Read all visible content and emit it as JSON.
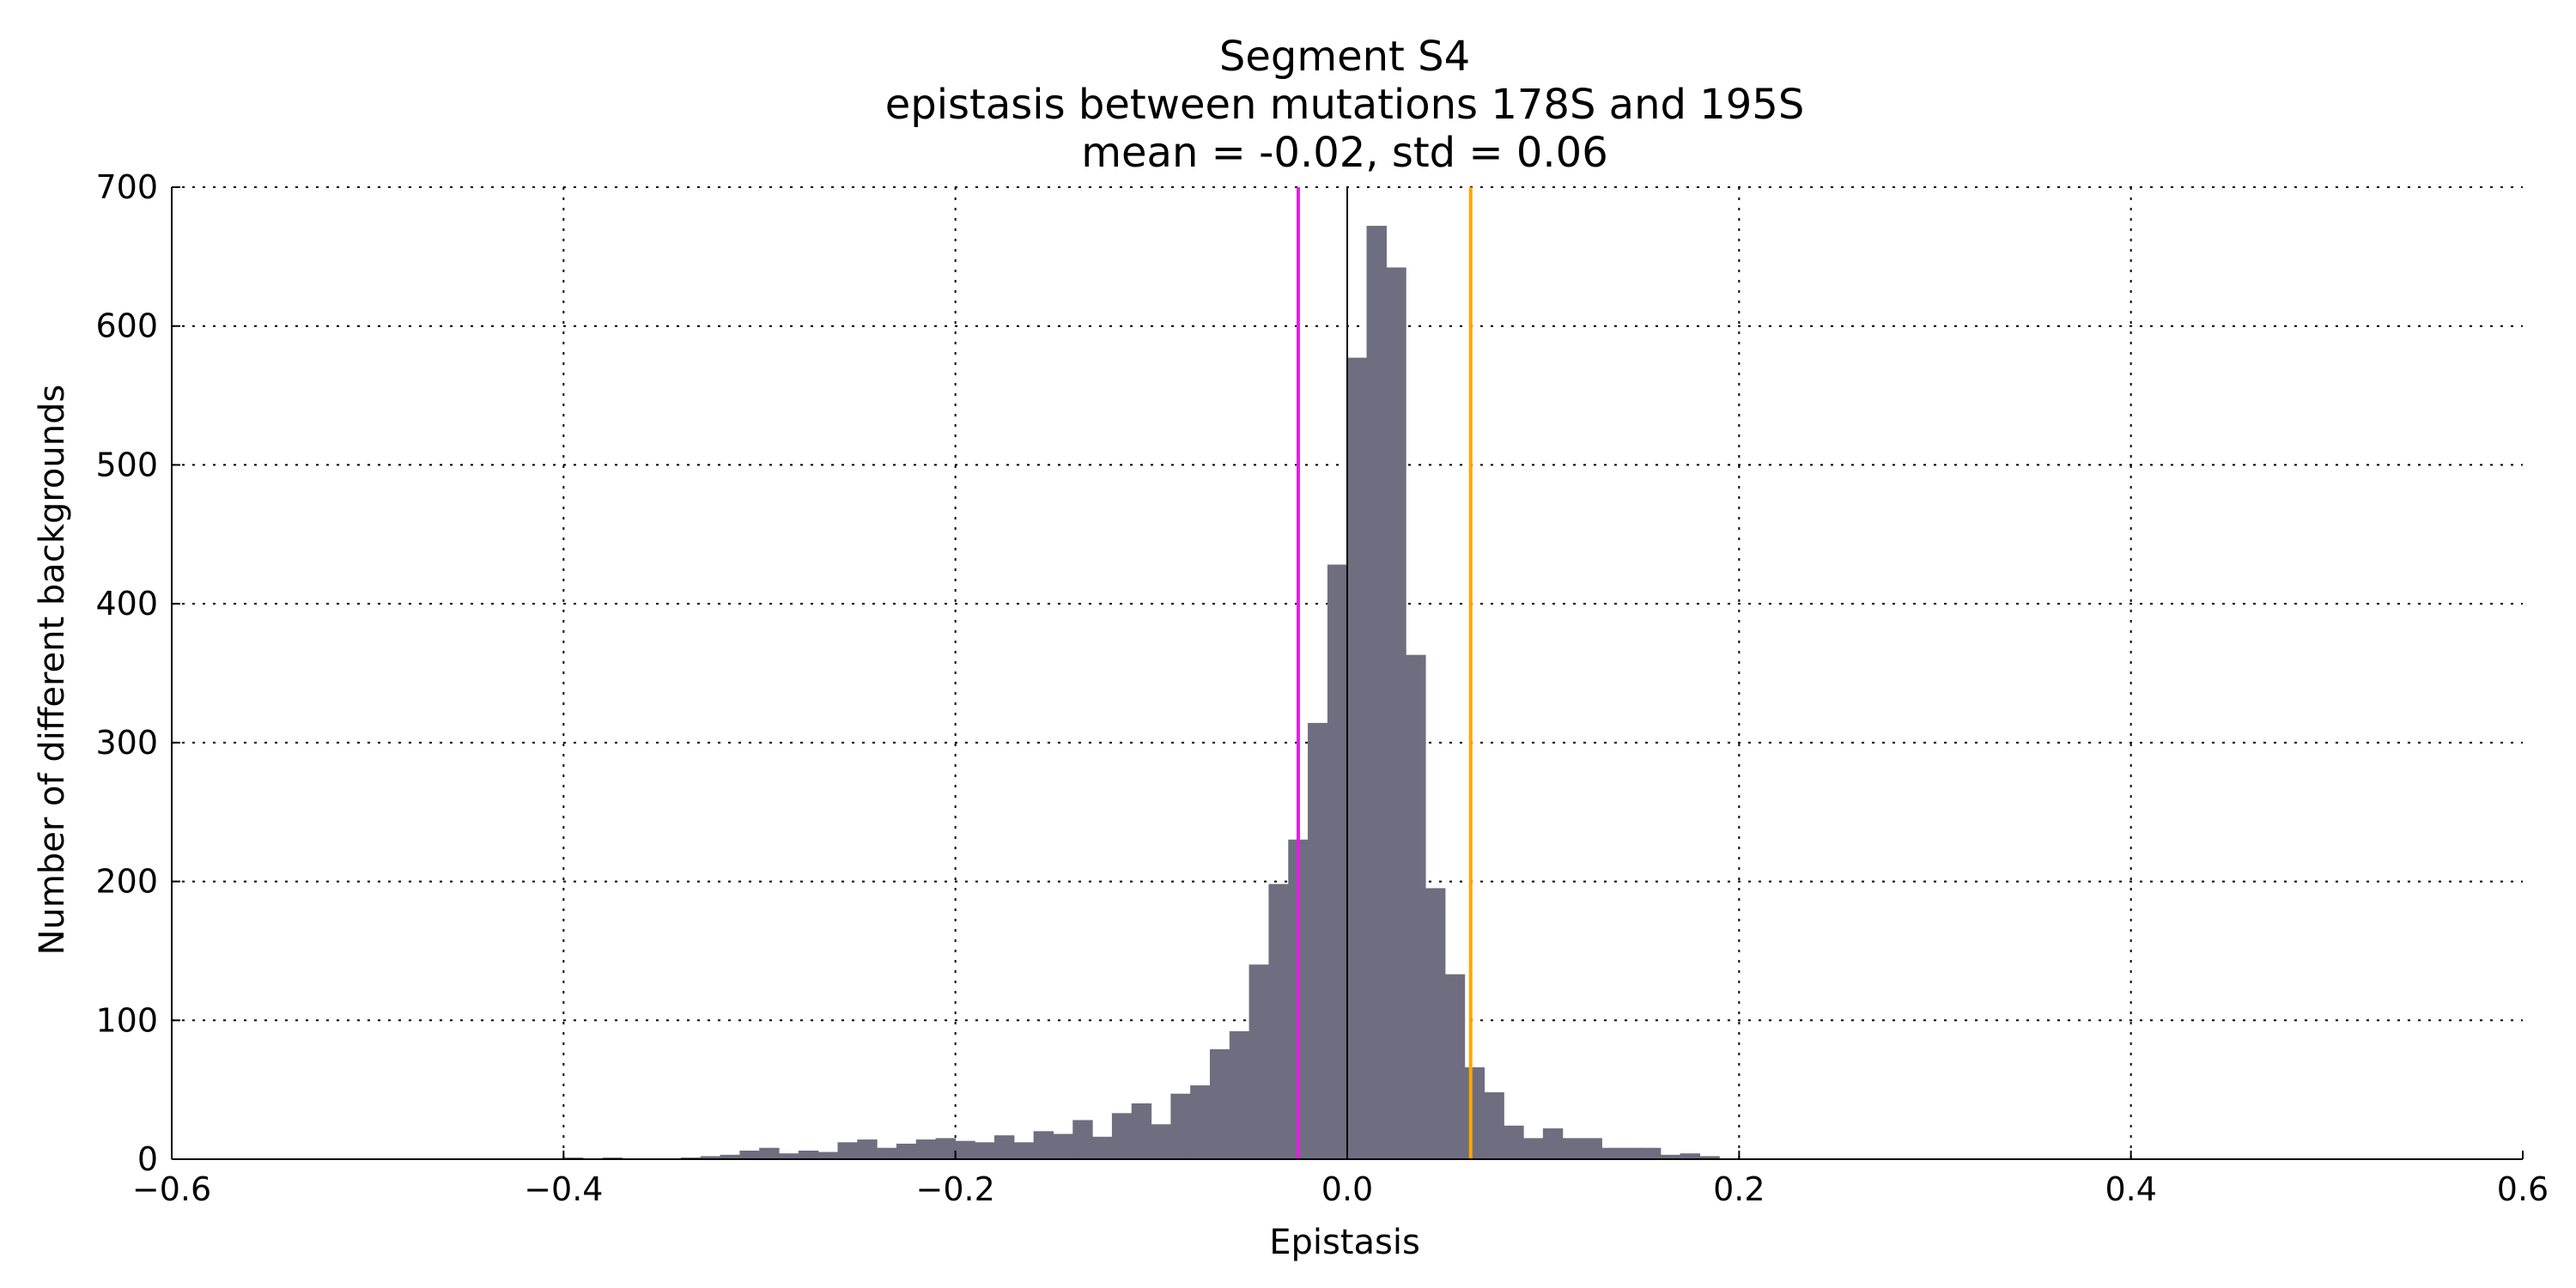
{
  "chart_data": {
    "type": "bar",
    "title_lines": [
      "Segment S4",
      "epistasis between mutations 178S and 195S",
      "mean = -0.02, std = 0.06"
    ],
    "xlabel": "Epistasis",
    "ylabel": "Number of different backgrounds",
    "xlim": [
      -0.6,
      0.6
    ],
    "ylim": [
      0,
      700
    ],
    "xticks": [
      -0.6,
      -0.4,
      -0.2,
      0.0,
      0.2,
      0.4,
      0.6
    ],
    "xtick_labels": [
      "−0.6",
      "−0.4",
      "−0.2",
      "0.0",
      "0.2",
      "0.4",
      "0.6"
    ],
    "yticks": [
      0,
      100,
      200,
      300,
      400,
      500,
      600,
      700
    ],
    "ytick_labels": [
      "0",
      "100",
      "200",
      "300",
      "400",
      "500",
      "600",
      "700"
    ],
    "grid": true,
    "bins": {
      "start": -0.6,
      "width": 0.01,
      "counts": [
        0,
        0,
        0,
        0,
        0,
        0,
        0,
        0,
        0,
        0,
        0,
        0,
        0,
        0,
        0,
        0,
        0,
        0,
        0,
        0,
        1,
        0,
        1,
        0,
        0,
        0,
        1,
        2,
        3,
        6,
        8,
        4,
        6,
        5,
        12,
        14,
        8,
        11,
        14,
        15,
        13,
        12,
        17,
        12,
        20,
        18,
        28,
        16,
        33,
        40,
        25,
        47,
        53,
        79,
        92,
        140,
        198,
        230,
        314,
        428,
        577,
        672,
        642,
        363,
        195,
        133,
        66,
        48,
        24,
        15,
        22,
        15,
        15,
        8,
        8,
        8,
        3,
        4,
        2,
        0,
        0,
        0,
        0,
        0,
        0,
        0,
        0,
        0,
        0,
        0,
        0,
        0,
        0,
        0,
        0,
        0,
        0,
        0,
        0,
        0,
        0,
        0,
        0,
        0,
        0,
        0,
        0,
        0,
        0,
        0,
        0,
        0,
        0,
        0,
        0,
        0,
        0,
        0,
        0,
        0
      ]
    },
    "bar_color": "#6e6e80",
    "vlines": [
      {
        "x": -0.025,
        "color": "#e020e0"
      },
      {
        "x": 0.0,
        "color": "#000000"
      },
      {
        "x": 0.063,
        "color": "#ffa500"
      }
    ]
  }
}
